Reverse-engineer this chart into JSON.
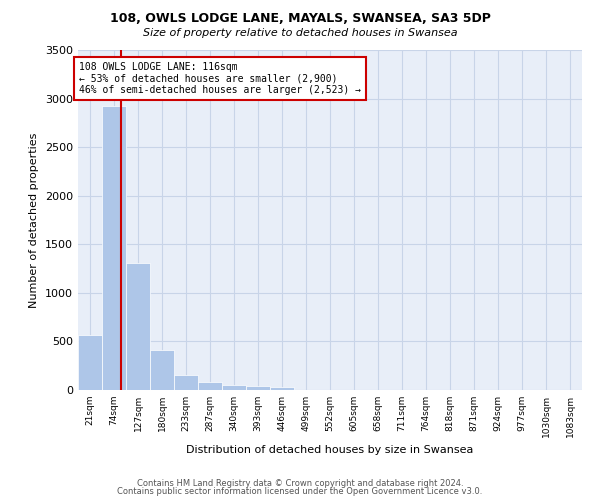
{
  "title_line1": "108, OWLS LODGE LANE, MAYALS, SWANSEA, SA3 5DP",
  "title_line2": "Size of property relative to detached houses in Swansea",
  "xlabel": "Distribution of detached houses by size in Swansea",
  "ylabel": "Number of detached properties",
  "footer_line1": "Contains HM Land Registry data © Crown copyright and database right 2024.",
  "footer_line2": "Contains public sector information licensed under the Open Government Licence v3.0.",
  "bin_labels": [
    "21sqm",
    "74sqm",
    "127sqm",
    "180sqm",
    "233sqm",
    "287sqm",
    "340sqm",
    "393sqm",
    "446sqm",
    "499sqm",
    "552sqm",
    "605sqm",
    "658sqm",
    "711sqm",
    "764sqm",
    "818sqm",
    "871sqm",
    "924sqm",
    "977sqm",
    "1030sqm",
    "1083sqm"
  ],
  "bar_values": [
    570,
    2920,
    1310,
    410,
    155,
    80,
    55,
    45,
    35,
    0,
    0,
    0,
    0,
    0,
    0,
    0,
    0,
    0,
    0,
    0,
    0
  ],
  "bar_color": "#aec6e8",
  "bar_edge_color": "white",
  "grid_color": "#c8d4e8",
  "background_color": "#e8eef8",
  "vline_color": "#cc0000",
  "annotation_line1": "108 OWLS LODGE LANE: 116sqm",
  "annotation_line2": "← 53% of detached houses are smaller (2,900)",
  "annotation_line3": "46% of semi-detached houses are larger (2,523) →",
  "annotation_box_color": "#cc0000",
  "annotation_bg": "white",
  "ylim": [
    0,
    3500
  ],
  "yticks": [
    0,
    500,
    1000,
    1500,
    2000,
    2500,
    3000,
    3500
  ]
}
